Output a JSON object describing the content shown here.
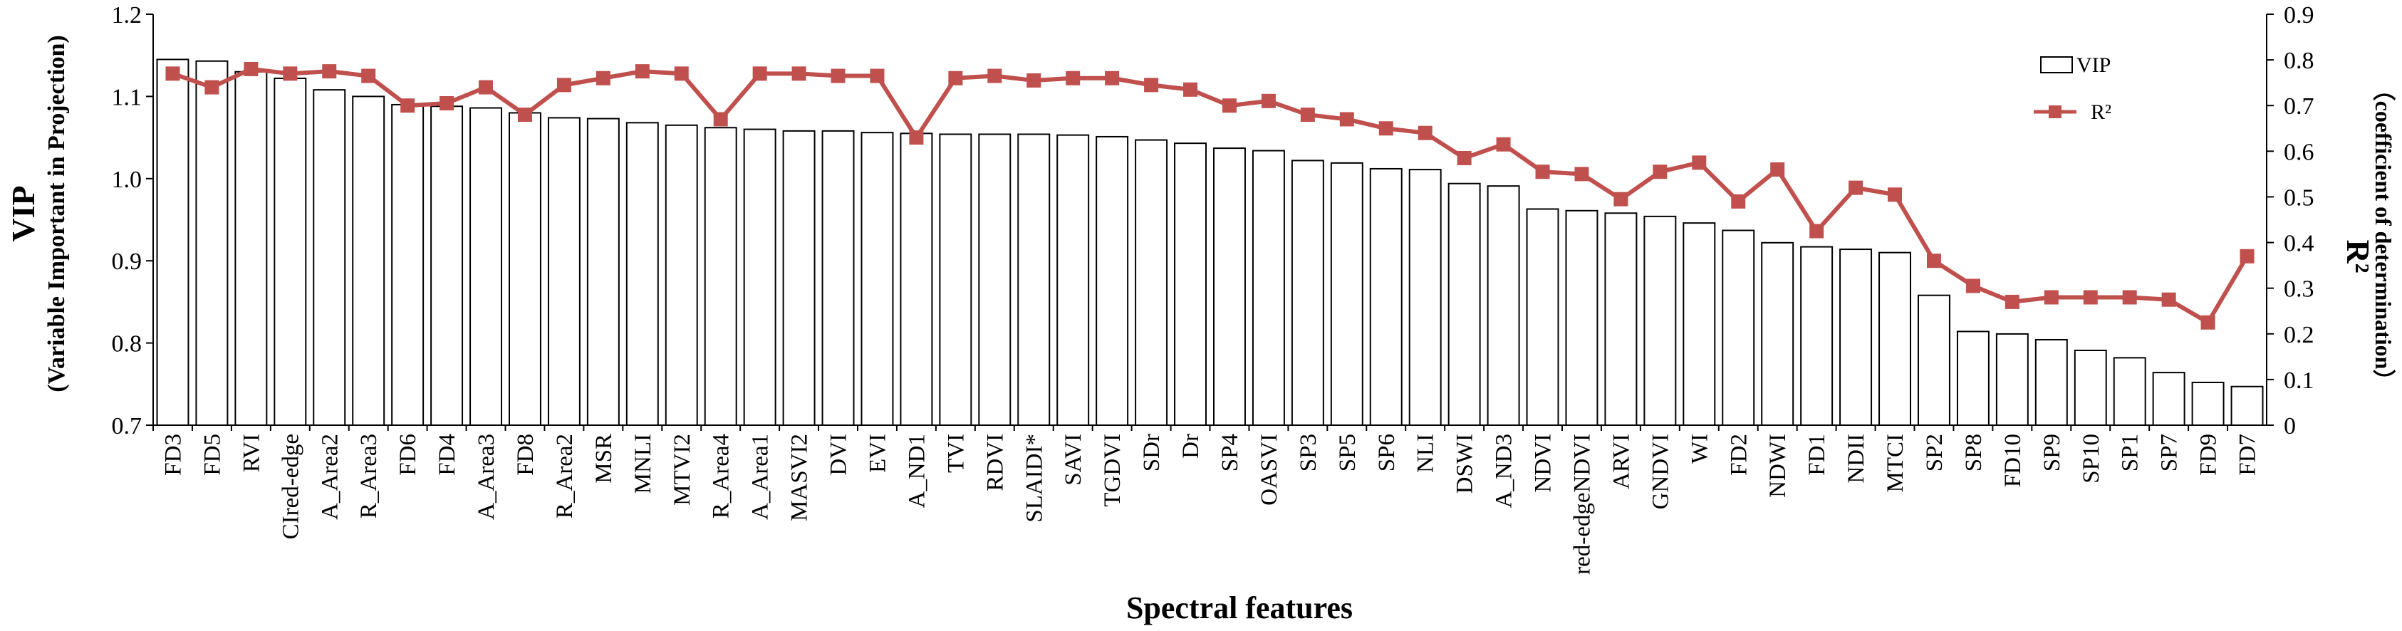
{
  "chart_data": {
    "type": "bar+line",
    "categories": [
      "FD3",
      "FD5",
      "RVI",
      "CIred-edge",
      "A_Area2",
      "R_Area3",
      "FD6",
      "FD4",
      "A_Area3",
      "FD8",
      "R_Area2",
      "MSR",
      "MNLI",
      "MTVI2",
      "R_Area4",
      "A_Area1",
      "MASVI2",
      "DVI",
      "EVI",
      "A_ND1",
      "TVI",
      "RDVI",
      "SLAIDI*",
      "SAVI",
      "TGDVI",
      "SDr",
      "Dr",
      "SP4",
      "OASVI",
      "SP3",
      "SP5",
      "SP6",
      "NLI",
      "DSWI",
      "A_ND3",
      "NDVI",
      "red-edgeNDVI",
      "ARVI",
      "GNDVI",
      "WI",
      "FD2",
      "NDWI",
      "FD1",
      "NDII",
      "MTCI",
      "SP2",
      "SP8",
      "FD10",
      "SP9",
      "SP10",
      "SP1",
      "SP7",
      "FD9",
      "FD7"
    ],
    "series": [
      {
        "name": "VIP",
        "type": "bar",
        "axis": "left",
        "values": [
          1.145,
          1.143,
          1.13,
          1.122,
          1.108,
          1.1,
          1.09,
          1.088,
          1.086,
          1.08,
          1.074,
          1.073,
          1.068,
          1.065,
          1.062,
          1.06,
          1.058,
          1.058,
          1.056,
          1.055,
          1.054,
          1.054,
          1.054,
          1.053,
          1.051,
          1.047,
          1.043,
          1.037,
          1.034,
          1.022,
          1.019,
          1.012,
          1.011,
          0.994,
          0.991,
          0.963,
          0.961,
          0.958,
          0.954,
          0.946,
          0.937,
          0.922,
          0.917,
          0.914,
          0.91,
          0.858,
          0.814,
          0.811,
          0.804,
          0.791,
          0.782,
          0.764,
          0.752,
          0.747
        ]
      },
      {
        "name": "R²",
        "type": "line",
        "axis": "right",
        "values": [
          0.77,
          0.74,
          0.78,
          0.77,
          0.775,
          0.765,
          0.7,
          0.705,
          0.74,
          0.68,
          0.745,
          0.76,
          0.775,
          0.77,
          0.67,
          0.77,
          0.77,
          0.765,
          0.765,
          0.63,
          0.76,
          0.765,
          0.755,
          0.76,
          0.76,
          0.745,
          0.735,
          0.7,
          0.71,
          0.68,
          0.67,
          0.65,
          0.64,
          0.585,
          0.615,
          0.555,
          0.55,
          0.495,
          0.555,
          0.575,
          0.49,
          0.56,
          0.425,
          0.52,
          0.505,
          0.36,
          0.305,
          0.27,
          0.28,
          0.28,
          0.28,
          0.275,
          0.225,
          0.37
        ]
      }
    ],
    "ylim_left": [
      0.7,
      1.2
    ],
    "yticks_left": [
      "0.7",
      "0.8",
      "0.9",
      "1.0",
      "1.1",
      "1.2"
    ],
    "ylim_right": [
      0,
      0.9
    ],
    "yticks_right": [
      "0",
      "0.1",
      "0.2",
      "0.3",
      "0.4",
      "0.5",
      "0.6",
      "0.7",
      "0.8",
      "0.9"
    ],
    "xlabel": "Spectral features",
    "ylabel_left": "VIP",
    "ylabel_left_sub": "(Variable Important in Projection)",
    "ylabel_right": "R²",
    "ylabel_right_sub": "（coefficient of  determination）",
    "legend": {
      "position": "top-right",
      "entries": [
        "VIP",
        "R²"
      ]
    },
    "colors": {
      "bar_fill": "#ffffff",
      "bar_stroke": "#000000",
      "line": "#c0504d"
    },
    "grid": false
  }
}
